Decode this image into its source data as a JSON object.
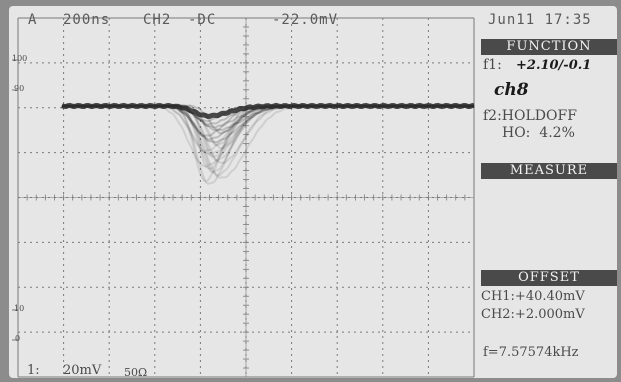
{
  "header": {
    "mode": "A",
    "timebase": "200ns",
    "channel": "CH2",
    "coupling": "-DC",
    "trigger_level": "-22.0mV",
    "datetime": "Jun11 17:35"
  },
  "function_panel": {
    "title": "FUNCTION",
    "f1_label": "f1:",
    "f1_note": "+2.10/-0.1",
    "channel_note": "ch8",
    "f2": "f2:HOLDOFF",
    "holdoff": "HO:  4.2%"
  },
  "measure_panel": {
    "title": "MEASURE"
  },
  "offset_panel": {
    "title": "OFFSET",
    "ch1": "CH1:+40.40mV",
    "ch2": "CH2:+2.000mV",
    "frequency": "f=7.57574kHz"
  },
  "footer": {
    "channel_index": "1:",
    "volts_per_div": "20mV",
    "impedance": "50Ω"
  },
  "grid_marks": {
    "left_top": "100",
    "left_mid": "90",
    "left_low": "10",
    "left_bottom": "0"
  },
  "colors": {
    "screen_bg": "#e6e6e6",
    "trace": "#2b2b2b",
    "grid": "#7a7a7a",
    "panel_bar": "#4a4a4a"
  }
}
